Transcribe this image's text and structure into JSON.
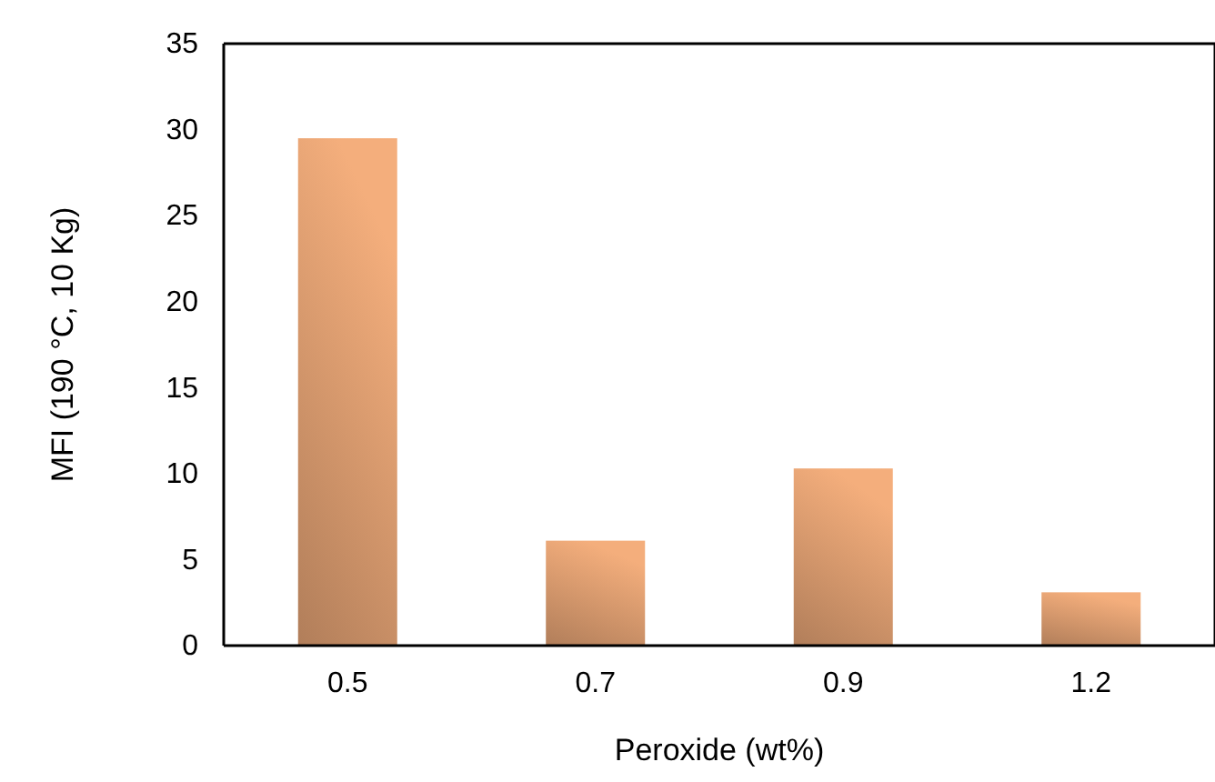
{
  "chart_data": {
    "type": "bar",
    "xlabel": "Peroxide (wt%)",
    "ylabel": "MFI (190 °C, 10 Kg)",
    "categories": [
      "0.5",
      "0.7",
      "0.9",
      "1.2"
    ],
    "values": [
      29.5,
      6.1,
      10.3,
      3.1
    ],
    "color": "#f4ae7c",
    "ylim": [
      0,
      35
    ],
    "yticks": [
      0,
      5,
      10,
      15,
      20,
      25,
      30,
      35
    ],
    "grid": false
  }
}
